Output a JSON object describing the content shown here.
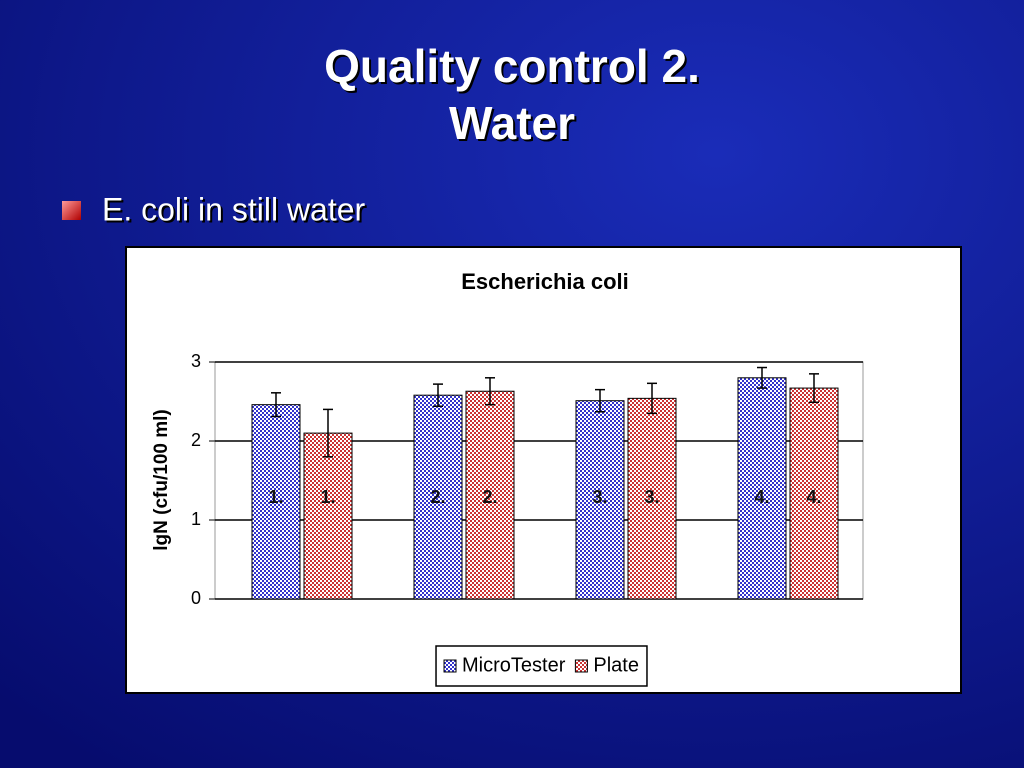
{
  "slide": {
    "title": [
      "Quality control 2.",
      "Water"
    ],
    "bullet": "E. coli in still water"
  },
  "chart_data": {
    "type": "bar",
    "title": "Escherichia coli",
    "y_label": "lgN (cfu/100 ml)",
    "categories": [
      "1.",
      "2.",
      "3.",
      "4."
    ],
    "series": [
      {
        "name": "MicroTester",
        "color": "#3333cc",
        "values": [
          2.46,
          2.58,
          2.51,
          2.8
        ],
        "errors": [
          0.15,
          0.14,
          0.14,
          0.13
        ]
      },
      {
        "name": "Plate",
        "color": "#cc3333",
        "values": [
          2.1,
          2.63,
          2.54,
          2.67
        ],
        "errors": [
          0.3,
          0.17,
          0.19,
          0.18
        ]
      }
    ],
    "ylim": [
      0,
      3
    ],
    "yticks": [
      0,
      1,
      2,
      3
    ],
    "grid": true,
    "legend": "bottom"
  }
}
